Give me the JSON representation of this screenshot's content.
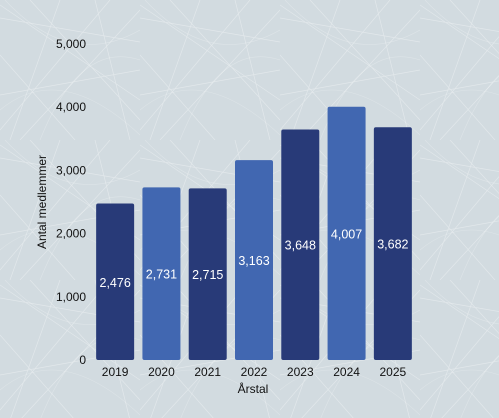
{
  "chart_data": {
    "type": "bar",
    "categories": [
      "2019",
      "2020",
      "2021",
      "2022",
      "2023",
      "2024",
      "2025"
    ],
    "values": [
      2476,
      2731,
      2715,
      3163,
      3648,
      4007,
      3682
    ],
    "value_labels": [
      "2,476",
      "2,731",
      "2,715",
      "3,163",
      "3,648",
      "4,007",
      "3,682"
    ],
    "bar_colors": [
      "#283a78",
      "#4167b1",
      "#283a78",
      "#4167b1",
      "#283a78",
      "#4167b1",
      "#283a78"
    ],
    "xlabel": "Årstal",
    "ylabel": "Antal medlemmer",
    "ylim": [
      0,
      5000
    ],
    "yticks": [
      0,
      1000,
      2000,
      3000,
      4000,
      5000
    ],
    "ytick_labels": [
      "0",
      "1,000",
      "2,000",
      "3,000",
      "4,000",
      "5,000"
    ],
    "grid": false,
    "background": "#d2dbe0"
  }
}
